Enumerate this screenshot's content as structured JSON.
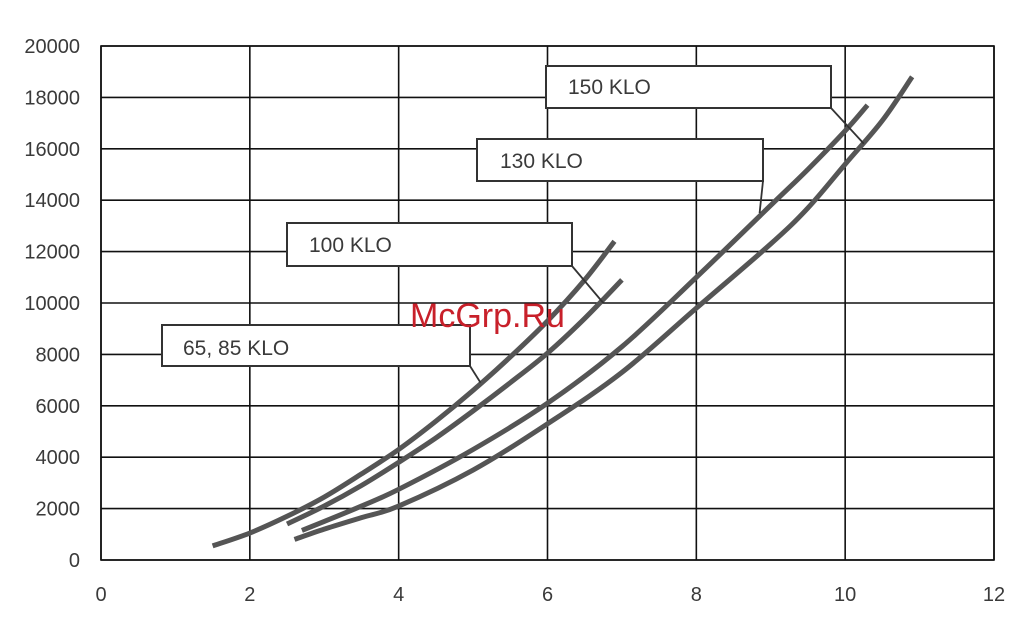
{
  "chart_data": {
    "type": "line",
    "xlim": [
      0,
      12
    ],
    "ylim": [
      0,
      20000
    ],
    "x_ticks": [
      "0",
      "2",
      "4",
      "6",
      "8",
      "10",
      "12"
    ],
    "y_ticks": [
      "0",
      "2000",
      "4000",
      "6000",
      "8000",
      "10000",
      "12000",
      "14000",
      "16000",
      "18000",
      "20000"
    ],
    "grid": true,
    "series": [
      {
        "name": "65, 85 KLO",
        "x": [
          1.5,
          2,
          2.5,
          3,
          3.5,
          4,
          4.5,
          5,
          5.5,
          6,
          6.5,
          6.9
        ],
        "y": [
          550,
          1050,
          1700,
          2450,
          3350,
          4300,
          5400,
          6600,
          7900,
          9300,
          10900,
          12400
        ]
      },
      {
        "name": "100 KLO",
        "x": [
          2.5,
          3,
          3.5,
          4,
          4.5,
          5,
          5.5,
          6,
          6.5,
          7
        ],
        "y": [
          1400,
          2100,
          2900,
          3800,
          4750,
          5800,
          6900,
          8050,
          9400,
          10900
        ]
      },
      {
        "name": "130 KLO",
        "x": [
          2.7,
          3,
          3.5,
          4,
          5,
          6,
          7,
          8,
          9,
          9.5,
          10,
          10.3
        ],
        "y": [
          1150,
          1500,
          2100,
          2750,
          4300,
          6100,
          8300,
          11000,
          13800,
          15200,
          16700,
          17700
        ]
      },
      {
        "name": "150 KLO",
        "x": [
          2.6,
          3,
          3.5,
          4,
          5,
          6,
          7,
          8,
          9,
          9.5,
          10,
          10.5,
          10.9
        ],
        "y": [
          800,
          1200,
          1650,
          2100,
          3500,
          5300,
          7300,
          9800,
          12300,
          13700,
          15400,
          17100,
          18800
        ]
      }
    ]
  },
  "annotations": [
    "150 KLO",
    "130 KLO",
    "100 KLO",
    "65, 85 KLO"
  ],
  "watermark": "McGrp.Ru",
  "colors": {
    "line": "#555555",
    "grid": "#111111",
    "watermark": "#c8202a"
  }
}
